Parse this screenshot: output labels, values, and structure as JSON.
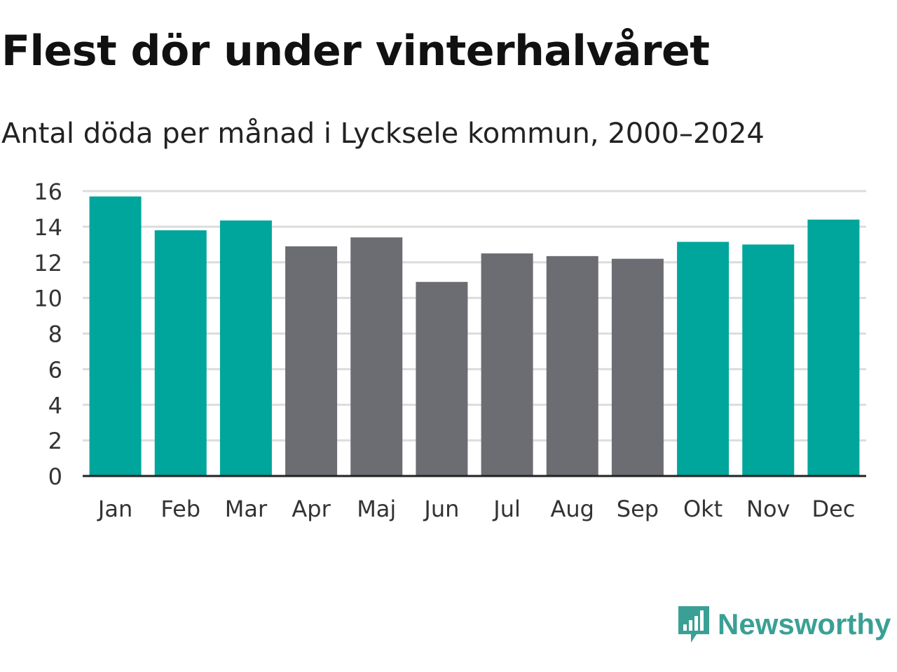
{
  "colors": {
    "winter": "#00a59c",
    "summer": "#6c6c73",
    "grid": "#dcdcdc",
    "axis": "#222222",
    "brand": "#3aa095"
  },
  "brand": {
    "name": "Newsworthy",
    "icon": "newsworthy-logo-icon"
  },
  "chart_data": {
    "type": "bar",
    "title": "Flest dör under vinterhalvåret",
    "subtitle": "Antal döda per månad i Lycksele kommun, 2000–2024",
    "xlabel": "",
    "ylabel": "",
    "ylim": [
      0,
      16
    ],
    "yticks": [
      0,
      2,
      4,
      6,
      8,
      10,
      12,
      14,
      16
    ],
    "grid": true,
    "categories": [
      "Jan",
      "Feb",
      "Mar",
      "Apr",
      "Maj",
      "Jun",
      "Jul",
      "Aug",
      "Sep",
      "Okt",
      "Nov",
      "Dec"
    ],
    "values": [
      15.7,
      13.8,
      14.35,
      12.9,
      13.4,
      10.9,
      12.5,
      12.35,
      12.2,
      13.15,
      13.0,
      14.4
    ],
    "season": [
      "winter",
      "winter",
      "winter",
      "summer",
      "summer",
      "summer",
      "summer",
      "summer",
      "summer",
      "winter",
      "winter",
      "winter"
    ]
  }
}
